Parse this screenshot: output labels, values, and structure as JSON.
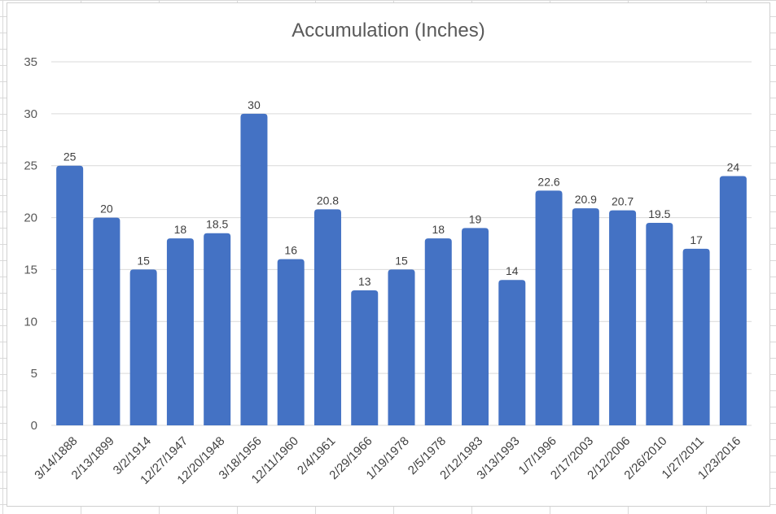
{
  "chart_data": {
    "type": "bar",
    "title": "Accumulation (Inches)",
    "xlabel": "",
    "ylabel": "",
    "ylim": [
      0,
      35
    ],
    "yticks": [
      "0",
      "5",
      "10",
      "15",
      "20",
      "25",
      "30",
      "35"
    ],
    "grid": true,
    "legend": "none",
    "categories": [
      "3/14/1888",
      "2/13/1899",
      "3/2/1914",
      "12/27/1947",
      "12/20/1948",
      "3/18/1956",
      "12/11/1960",
      "2/4/1961",
      "2/29/1966",
      "1/19/1978",
      "2/5/1978",
      "2/12/1983",
      "3/13/1993",
      "1/7/1996",
      "2/17/2003",
      "2/12/2006",
      "2/26/2010",
      "1/27/2011",
      "1/23/2016"
    ],
    "values": [
      25,
      20,
      15,
      18,
      18.5,
      30,
      16,
      20.8,
      13,
      15,
      18,
      19,
      14,
      22.6,
      20.9,
      20.7,
      19.5,
      17,
      24
    ],
    "data_labels": [
      "25",
      "20",
      "15",
      "18",
      "18.5",
      "30",
      "16",
      "20.8",
      "13",
      "15",
      "18",
      "19",
      "14",
      "22.6",
      "20.9",
      "20.7",
      "19.5",
      "17",
      "24"
    ],
    "bar_color": "#4472c4",
    "gridline_color": "#d9d9d9"
  }
}
